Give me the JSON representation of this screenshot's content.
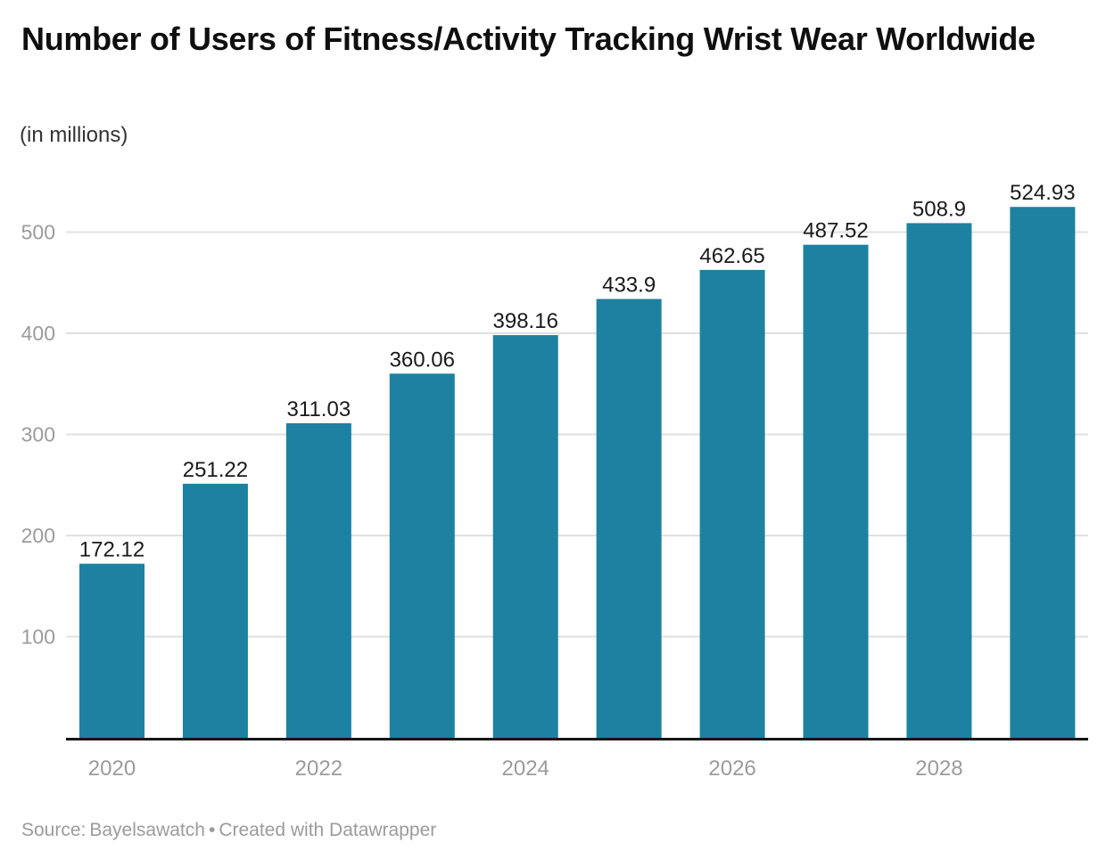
{
  "header": {
    "title": "Number of Users of Fitness/Activity Tracking Wrist Wear Worldwide",
    "subtitle": "(in millions)"
  },
  "footer": {
    "source_label": "Source:",
    "source": "Bayelsawatch",
    "separator": "•",
    "credit": "Created with Datawrapper"
  },
  "colors": {
    "bar": "#1d81a2",
    "gridline": "#e0e0e0",
    "axis_line": "#161616",
    "tick_label": "#9b9b9b",
    "value_label": "#1a1a1a"
  },
  "chart_data": {
    "type": "bar",
    "title": "Number of Users of Fitness/Activity Tracking Wrist Wear Worldwide",
    "subtitle": "(in millions)",
    "source": "Source: Bayelsawatch • Created with Datawrapper",
    "categories": [
      "2020",
      "2021",
      "2022",
      "2023",
      "2024",
      "2025",
      "2026",
      "2027",
      "2028",
      "2029"
    ],
    "values": [
      172.12,
      251.22,
      311.03,
      360.06,
      398.16,
      433.9,
      462.65,
      487.52,
      508.9,
      524.93
    ],
    "value_labels": [
      "172.12",
      "251.22",
      "311.03",
      "360.06",
      "398.16",
      "433.9",
      "462.65",
      "487.52",
      "508.9",
      "524.93"
    ],
    "y_ticks": [
      100,
      200,
      300,
      400,
      500
    ],
    "x_tick_labels": [
      "2020",
      "2022",
      "2024",
      "2026",
      "2028"
    ],
    "x_tick_positions": [
      0,
      2,
      4,
      6,
      8
    ],
    "xlabel": "",
    "ylabel": "",
    "ylim": [
      0,
      562
    ],
    "grid": "horizontal",
    "legend": "none"
  }
}
